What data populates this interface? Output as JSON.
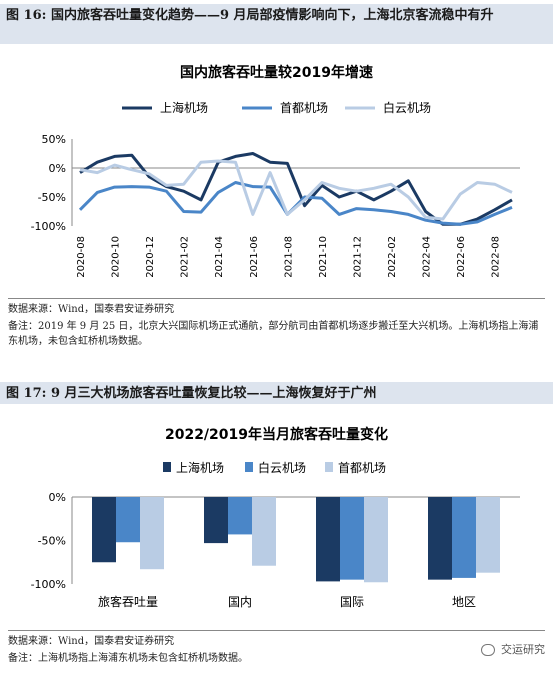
{
  "fig16": {
    "header": "图 16:  国内旅客吞吐量变化趋势——9 月局部疫情影响向下，上海北京客流稳中有升",
    "source": "数据来源：Wind，国泰君安证券研究",
    "note": "备注：2019 年 9 月 25 日，北京大兴国际机场正式通航，部分航司由首都机场逐步搬迁至大兴机场。上海机场指上海浦东机场，未包含虹桥机场数据。"
  },
  "fig17": {
    "header": "图 17:  9 月三大机场旅客吞吐量恢复比较——上海恢复好于广州",
    "source": "数据来源：Wind，国泰君安证券研究",
    "note": "备注：上海机场指上海浦东机场未包含虹桥机场数据。"
  },
  "watermark": "交运研究",
  "colors": {
    "dark": "#1b3a63",
    "mid": "#4a86c8",
    "light": "#b9cce4"
  },
  "chart_data": [
    {
      "type": "line",
      "title": "国内旅客吞吐量较2019年增速",
      "x": [
        "2020-08",
        "2020-09",
        "2020-10",
        "2020-11",
        "2020-12",
        "2021-01",
        "2021-02",
        "2021-03",
        "2021-04",
        "2021-05",
        "2021-06",
        "2021-07",
        "2021-08",
        "2021-09",
        "2021-10",
        "2021-11",
        "2021-12",
        "2022-01",
        "2022-02",
        "2022-03",
        "2022-04",
        "2022-05",
        "2022-06",
        "2022-07",
        "2022-08",
        "2022-09"
      ],
      "x_ticks": [
        "2020-08",
        "2020-10",
        "2020-12",
        "2021-02",
        "2021-04",
        "2021-06",
        "2021-08",
        "2021-10",
        "2021-12",
        "2022-02",
        "2022-04",
        "2022-06",
        "2022-08"
      ],
      "y_ticks": [
        "50%",
        "0%",
        "-50%",
        "-100%"
      ],
      "ylim": [
        -100,
        50
      ],
      "legend_position": "top",
      "series": [
        {
          "name": "上海机场",
          "values": [
            -8,
            10,
            20,
            22,
            -15,
            -32,
            -40,
            -55,
            10,
            20,
            25,
            10,
            8,
            -65,
            -30,
            -50,
            -40,
            -55,
            -40,
            -22,
            -75,
            -97,
            -97,
            -88,
            -72,
            -55
          ]
        },
        {
          "name": "首都机场",
          "values": [
            -72,
            -42,
            -33,
            -32,
            -33,
            -40,
            -75,
            -76,
            -42,
            -25,
            -32,
            -33,
            -80,
            -50,
            -52,
            -80,
            -70,
            -72,
            -75,
            -80,
            -90,
            -95,
            -97,
            -93,
            -80,
            -68
          ]
        },
        {
          "name": "白云机场",
          "values": [
            -3,
            -8,
            5,
            -3,
            -10,
            -30,
            -28,
            10,
            12,
            10,
            -80,
            -8,
            -80,
            -55,
            -25,
            -35,
            -40,
            -35,
            -28,
            -50,
            -85,
            -88,
            -45,
            -25,
            -28,
            -42
          ]
        }
      ]
    },
    {
      "type": "bar",
      "title": "2022/2019年当月旅客吞吐量变化",
      "categories": [
        "旅客吞吐量",
        "国内",
        "国际",
        "地区"
      ],
      "y_ticks": [
        "0%",
        "-50%",
        "-100%"
      ],
      "ylim": [
        -100,
        0
      ],
      "legend_position": "top",
      "series": [
        {
          "name": "上海机场",
          "values": [
            -75,
            -53,
            -97,
            -95
          ]
        },
        {
          "name": "白云机场",
          "values": [
            -52,
            -43,
            -95,
            -93
          ]
        },
        {
          "name": "首都机场",
          "values": [
            -83,
            -79,
            -98,
            -87
          ]
        }
      ]
    }
  ]
}
